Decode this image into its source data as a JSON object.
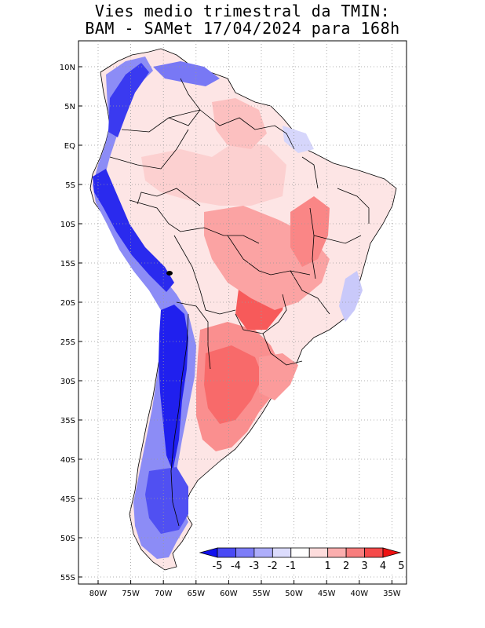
{
  "title": {
    "line1": "Vies medio trimestral da TMIN:",
    "line2": "BAM - SAMet 17/04/2024  para 168h"
  },
  "axes": {
    "lat_labels": [
      "10N",
      "5N",
      "EQ",
      "5S",
      "10S",
      "15S",
      "20S",
      "25S",
      "30S",
      "35S",
      "40S",
      "45S",
      "50S",
      "55S"
    ],
    "lon_labels": [
      "80W",
      "75W",
      "70W",
      "65W",
      "60W",
      "55W",
      "50W",
      "45W",
      "40W",
      "35W"
    ],
    "grid": "dotted"
  },
  "colorbar": {
    "labels": [
      "-5",
      "-4",
      "-3",
      "-2",
      "-1",
      "1",
      "2",
      "3",
      "4",
      "5"
    ],
    "colors": [
      "#1010ee",
      "#4a4af5",
      "#7d7df8",
      "#aeaefb",
      "#dcdcfd",
      "#ffffff",
      "#fddcdc",
      "#fbaeae",
      "#f87d7d",
      "#f54a4a",
      "#ee1010"
    ],
    "position": "bottom-right-inset"
  },
  "map_colors": {
    "land_base": "#fde5e5",
    "warm_strong": "#f85a5a",
    "warm_mid": "#fa9a9a",
    "cold_strong": "#1515ee",
    "cold_mid": "#6c6cf3",
    "cold_light": "#c8c8f8",
    "border": "#000000"
  }
}
